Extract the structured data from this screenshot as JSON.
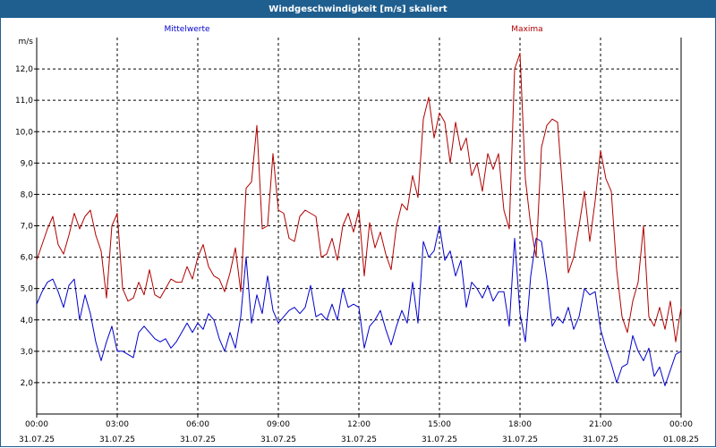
{
  "window": {
    "title": "Windgeschwindigkeit [m/s] skaliert"
  },
  "colors": {
    "titlebar": "#1f5f8f",
    "mean_series": "#0000cc",
    "max_series": "#b00000",
    "grid": "#000000"
  },
  "chart_data": {
    "type": "line",
    "title": "Windgeschwindigkeit [m/s] skaliert",
    "ylabel": "m/s",
    "xlabel": "",
    "ylim": [
      1.0,
      13.0
    ],
    "y_ticks": [
      "2,0",
      "3,0",
      "4,0",
      "5,0",
      "6,0",
      "7,0",
      "8,0",
      "9,0",
      "10,0",
      "11,0",
      "12,0"
    ],
    "y_tick_values": [
      2,
      3,
      4,
      5,
      6,
      7,
      8,
      9,
      10,
      11,
      12
    ],
    "xlim": [
      0,
      24
    ],
    "x_tick_times": [
      "00:00",
      "03:00",
      "06:00",
      "09:00",
      "12:00",
      "15:00",
      "18:00",
      "21:00",
      "00:00"
    ],
    "x_tick_dates": [
      "31.07.25",
      "31.07.25",
      "31.07.25",
      "31.07.25",
      "31.07.25",
      "31.07.25",
      "31.07.25",
      "31.07.25",
      "01.08.25"
    ],
    "x_tick_hours": [
      0,
      3,
      6,
      9,
      12,
      15,
      18,
      21,
      24
    ],
    "grid": true,
    "series": [
      {
        "name": "Mittelwerte",
        "color": "#0000cc",
        "x": [
          0.0,
          0.2,
          0.4,
          0.6,
          0.8,
          1.0,
          1.2,
          1.4,
          1.6,
          1.8,
          2.0,
          2.2,
          2.4,
          2.6,
          2.8,
          3.0,
          3.2,
          3.4,
          3.6,
          3.8,
          4.0,
          4.2,
          4.4,
          4.6,
          4.8,
          5.0,
          5.2,
          5.4,
          5.6,
          5.8,
          6.0,
          6.2,
          6.4,
          6.6,
          6.8,
          7.0,
          7.2,
          7.4,
          7.6,
          7.8,
          8.0,
          8.2,
          8.4,
          8.6,
          8.8,
          9.0,
          9.2,
          9.4,
          9.6,
          9.8,
          10.0,
          10.2,
          10.4,
          10.6,
          10.8,
          11.0,
          11.2,
          11.4,
          11.6,
          11.8,
          12.0,
          12.2,
          12.4,
          12.6,
          12.8,
          13.0,
          13.2,
          13.4,
          13.6,
          13.8,
          14.0,
          14.2,
          14.4,
          14.6,
          14.8,
          15.0,
          15.2,
          15.4,
          15.6,
          15.8,
          16.0,
          16.2,
          16.4,
          16.6,
          16.8,
          17.0,
          17.2,
          17.4,
          17.6,
          17.8,
          18.0,
          18.2,
          18.4,
          18.6,
          18.8,
          19.0,
          19.2,
          19.4,
          19.6,
          19.8,
          20.0,
          20.2,
          20.4,
          20.6,
          20.8,
          21.0,
          21.2,
          21.4,
          21.6,
          21.8,
          22.0,
          22.2,
          22.4,
          22.6,
          22.8,
          23.0,
          23.2,
          23.4,
          23.6,
          23.8,
          24.0
        ],
        "values": [
          4.5,
          4.9,
          5.2,
          5.3,
          4.9,
          4.4,
          5.1,
          5.3,
          4.0,
          4.8,
          4.2,
          3.3,
          2.7,
          3.3,
          3.8,
          3.0,
          3.0,
          2.9,
          2.8,
          3.6,
          3.8,
          3.6,
          3.4,
          3.3,
          3.4,
          3.1,
          3.3,
          3.6,
          3.9,
          3.6,
          3.9,
          3.7,
          4.2,
          4.0,
          3.4,
          3.0,
          3.6,
          3.1,
          4.1,
          6.0,
          3.9,
          4.8,
          4.2,
          5.4,
          4.3,
          3.9,
          4.1,
          4.3,
          4.4,
          4.2,
          4.4,
          5.1,
          4.1,
          4.2,
          4.0,
          4.5,
          4.0,
          5.0,
          4.4,
          4.5,
          4.4,
          3.1,
          3.8,
          4.0,
          4.3,
          3.7,
          3.2,
          3.8,
          4.3,
          3.9,
          5.2,
          3.9,
          6.5,
          6.0,
          6.2,
          7.0,
          5.9,
          6.2,
          5.4,
          5.9,
          4.4,
          5.2,
          5.0,
          4.7,
          5.1,
          4.6,
          4.9,
          4.9,
          3.8,
          6.6,
          4.2,
          3.3,
          5.4,
          6.6,
          6.5,
          5.3,
          3.8,
          4.1,
          3.9,
          4.4,
          3.7,
          4.1,
          5.0,
          4.8,
          4.9,
          3.7,
          3.1,
          2.6,
          2.0,
          2.5,
          2.6,
          3.5,
          3.0,
          2.7,
          3.1,
          2.2,
          2.5,
          1.9,
          2.4,
          2.9,
          3.0
        ],
        "_note": "remaining points continue"
      },
      {
        "name": "Maxima",
        "color": "#b00000",
        "x": [
          0.0,
          0.2,
          0.4,
          0.6,
          0.8,
          1.0,
          1.2,
          1.4,
          1.6,
          1.8,
          2.0,
          2.2,
          2.4,
          2.6,
          2.8,
          3.0,
          3.2,
          3.4,
          3.6,
          3.8,
          4.0,
          4.2,
          4.4,
          4.6,
          4.8,
          5.0,
          5.2,
          5.4,
          5.6,
          5.8,
          6.0,
          6.2,
          6.4,
          6.6,
          6.8,
          7.0,
          7.2,
          7.4,
          7.6,
          7.8,
          8.0,
          8.2,
          8.4,
          8.6,
          8.8,
          9.0,
          9.2,
          9.4,
          9.6,
          9.8,
          10.0,
          10.2,
          10.4,
          10.6,
          10.8,
          11.0,
          11.2,
          11.4,
          11.6,
          11.8,
          12.0,
          12.2,
          12.4,
          12.6,
          12.8,
          13.0,
          13.2,
          13.4,
          13.6,
          13.8,
          14.0,
          14.2,
          14.4,
          14.6,
          14.8,
          15.0,
          15.2,
          15.4,
          15.6,
          15.8,
          16.0,
          16.2,
          16.4,
          16.6,
          16.8,
          17.0,
          17.2,
          17.4,
          17.6,
          17.8,
          18.0,
          18.2,
          18.4,
          18.6,
          18.8,
          19.0,
          19.2,
          19.4,
          19.6,
          19.8,
          20.0,
          20.2,
          20.4,
          20.6,
          20.8,
          21.0,
          21.2,
          21.4,
          21.6,
          21.8,
          22.0,
          22.2,
          22.4,
          22.6,
          22.8,
          23.0,
          23.2,
          23.4,
          23.6,
          23.8,
          24.0
        ],
        "values": [
          5.9,
          6.4,
          6.9,
          7.3,
          6.4,
          6.1,
          6.7,
          7.4,
          6.9,
          7.3,
          7.5,
          6.7,
          6.2,
          4.7,
          7.0,
          7.4,
          5.0,
          4.6,
          4.7,
          5.2,
          4.8,
          5.6,
          4.8,
          4.7,
          5.0,
          5.3,
          5.2,
          5.2,
          5.7,
          5.3,
          6.0,
          6.4,
          5.7,
          5.4,
          5.3,
          4.9,
          5.5,
          6.3,
          4.9,
          8.2,
          8.4,
          10.2,
          6.9,
          7.0,
          9.3,
          7.5,
          7.4,
          6.6,
          6.5,
          7.3,
          7.5,
          7.4,
          7.3,
          6.0,
          6.1,
          6.6,
          5.9,
          7.0,
          7.4,
          6.8,
          7.5,
          5.4,
          7.1,
          6.3,
          6.8,
          6.1,
          5.6,
          7.0,
          7.7,
          7.5,
          8.6,
          7.9,
          10.4,
          11.1,
          9.8,
          10.6,
          10.3,
          9.0,
          10.3,
          9.4,
          9.8,
          8.6,
          9.0,
          8.1,
          9.3,
          8.8,
          9.3,
          7.5,
          6.9,
          12.0,
          12.5,
          8.5,
          7.0,
          6.0,
          9.5,
          10.2,
          10.4,
          10.3,
          8.0,
          5.5,
          6.0,
          7.0,
          8.1,
          6.5,
          7.8,
          9.4,
          8.5,
          8.1,
          5.6,
          4.1,
          3.6,
          4.6,
          5.2,
          7.0,
          4.1,
          3.8,
          4.4,
          3.7,
          4.6,
          3.3,
          4.4
        ],
        "_note": "remaining points continue"
      }
    ]
  }
}
